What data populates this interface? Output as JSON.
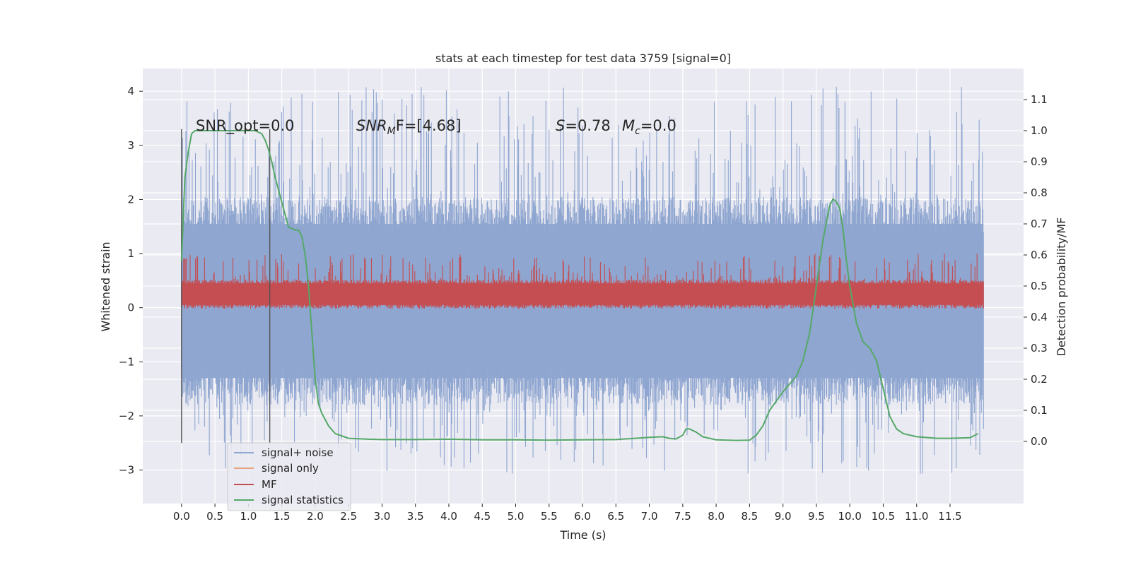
{
  "chart_data": {
    "type": "line",
    "title": "stats at each timestep for test data 3759 [signal=0]",
    "xlabel": "Time (s)",
    "ylabel": "Whitened strain",
    "ylabel_right": "Detection probability/MF",
    "xlim": [
      -0.58,
      12.6
    ],
    "ylim": [
      -3.62,
      4.42
    ],
    "ylim_right": [
      -0.2,
      1.2
    ],
    "x_ticks": [
      "0.0",
      "0.5",
      "1.0",
      "1.5",
      "2.0",
      "2.5",
      "3.0",
      "3.5",
      "4.0",
      "4.5",
      "5.0",
      "5.5",
      "6.0",
      "6.5",
      "7.0",
      "7.5",
      "8.0",
      "8.5",
      "9.0",
      "9.5",
      "10.0",
      "10.5",
      "11.0",
      "11.5"
    ],
    "y_ticks_left": [
      "−3",
      "−2",
      "−1",
      "0",
      "1",
      "2",
      "3",
      "4"
    ],
    "y_ticks_right": [
      "0.0",
      "0.1",
      "0.2",
      "0.3",
      "0.4",
      "0.5",
      "0.6",
      "0.7",
      "0.8",
      "0.9",
      "1.0",
      "1.1"
    ],
    "grid": true,
    "legend_position": "lower-left",
    "legend": [
      "signal+ noise",
      "signal only",
      "MF",
      "signal statistics"
    ],
    "annotations": {
      "snr_opt": "SNR_opt=0.0",
      "snr_mf_symbol": "SNR",
      "snr_mf_subscript": "M",
      "snr_mf_rest": "F=[4.68]",
      "s_symbol": "S",
      "s_value": "=0.78",
      "mc_symbol": "M",
      "mc_subscript": "c",
      "mc_value": "=0.0"
    },
    "window_markers_x": [
      0.0,
      1.32
    ],
    "series": [
      {
        "name": "signal+ noise",
        "axis": "left",
        "color": "#8fa6d0",
        "kind": "noise_band",
        "x_range": [
          0.0,
          12.0
        ],
        "core_band": [
          -1.3,
          1.55
        ],
        "peak_range": [
          -3.1,
          4.1
        ]
      },
      {
        "name": "signal only",
        "axis": "left",
        "color": "#e8a07d",
        "values": []
      },
      {
        "name": "MF",
        "axis": "left",
        "color": "#c44e52",
        "kind": "noise_band",
        "x_range": [
          0.0,
          12.0
        ],
        "core_band": [
          0.05,
          0.45
        ],
        "peak_range": [
          0.0,
          1.0
        ]
      },
      {
        "name": "signal statistics",
        "axis": "right",
        "color": "#55a868",
        "x": [
          0.0,
          0.05,
          0.1,
          0.15,
          0.2,
          0.3,
          0.5,
          0.8,
          1.0,
          1.1,
          1.2,
          1.25,
          1.3,
          1.35,
          1.4,
          1.5,
          1.6,
          1.7,
          1.75,
          1.8,
          1.85,
          1.9,
          1.95,
          2.0,
          2.05,
          2.1,
          2.2,
          2.3,
          2.5,
          2.8,
          3.0,
          3.5,
          4.0,
          4.5,
          5.0,
          5.5,
          6.0,
          6.5,
          7.0,
          7.2,
          7.3,
          7.4,
          7.5,
          7.55,
          7.6,
          7.7,
          7.8,
          8.0,
          8.3,
          8.5,
          8.6,
          8.7,
          8.8,
          9.0,
          9.2,
          9.3,
          9.4,
          9.5,
          9.6,
          9.7,
          9.75,
          9.8,
          9.85,
          9.9,
          9.95,
          10.0,
          10.1,
          10.2,
          10.3,
          10.4,
          10.5,
          10.6,
          10.7,
          10.8,
          11.0,
          11.3,
          11.5,
          11.8,
          11.92
        ],
        "y": [
          0.58,
          0.85,
          0.93,
          0.99,
          1.0,
          1.0,
          1.0,
          1.0,
          1.0,
          1.0,
          0.99,
          0.97,
          0.94,
          0.9,
          0.85,
          0.77,
          0.69,
          0.68,
          0.68,
          0.66,
          0.6,
          0.5,
          0.35,
          0.2,
          0.12,
          0.09,
          0.05,
          0.025,
          0.01,
          0.007,
          0.006,
          0.006,
          0.007,
          0.005,
          0.005,
          0.004,
          0.005,
          0.006,
          0.013,
          0.015,
          0.01,
          0.008,
          0.02,
          0.04,
          0.04,
          0.03,
          0.015,
          0.005,
          0.003,
          0.004,
          0.02,
          0.05,
          0.1,
          0.16,
          0.21,
          0.26,
          0.35,
          0.5,
          0.65,
          0.76,
          0.78,
          0.77,
          0.75,
          0.68,
          0.58,
          0.5,
          0.38,
          0.32,
          0.3,
          0.26,
          0.17,
          0.08,
          0.04,
          0.025,
          0.015,
          0.01,
          0.01,
          0.012,
          0.025
        ]
      }
    ]
  }
}
